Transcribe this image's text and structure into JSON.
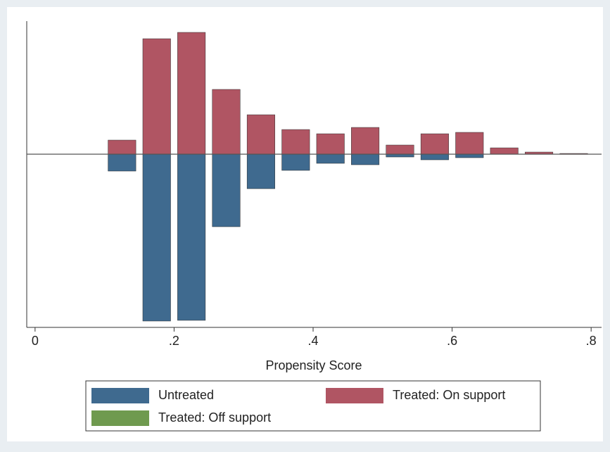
{
  "chart_data": {
    "type": "histogram",
    "x_label": "Propensity Score",
    "bins": [
      0.1,
      0.15,
      0.2,
      0.25,
      0.3,
      0.35,
      0.4,
      0.45,
      0.5,
      0.55,
      0.6,
      0.65,
      0.7,
      0.75,
      0.8
    ],
    "series": [
      {
        "name": "Untreated",
        "color": "#3f6a8f",
        "values": [
          -24,
          -237,
          -236,
          -103,
          -49,
          -23,
          -13,
          -15,
          -4,
          -8,
          -5,
          0,
          0,
          0
        ]
      },
      {
        "name": "Treated: On support",
        "color": "#b05563",
        "values": [
          20,
          164,
          173,
          92,
          56,
          35,
          29,
          38,
          13,
          29,
          31,
          9,
          3,
          1
        ]
      },
      {
        "name": "Treated: Off support",
        "color": "#6f9a4f",
        "values": [
          0,
          0,
          0,
          0,
          0,
          0,
          0,
          0,
          0,
          0,
          0,
          0,
          0,
          0
        ]
      }
    ],
    "xlim": [
      -0.012,
      0.815
    ],
    "xticks": [
      0,
      {
        "value": 0.2,
        "label": ".2"
      },
      {
        "value": 0.4,
        "label": ".4"
      },
      {
        "value": 0.6,
        "label": ".6"
      },
      {
        "value": 0.8,
        "label": ".8"
      }
    ],
    "ylim": [
      -246,
      184
    ]
  }
}
